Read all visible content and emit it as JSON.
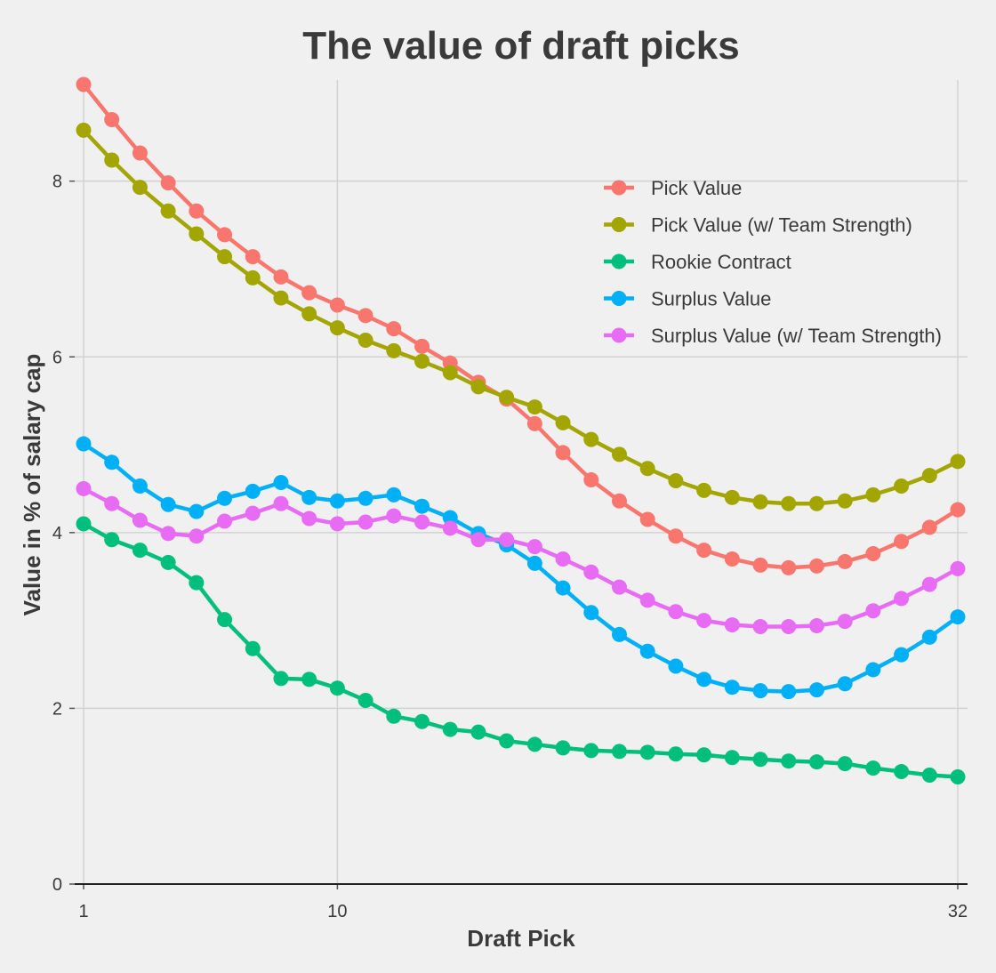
{
  "chart_data": {
    "type": "line",
    "title": "The value of draft picks",
    "xlabel": "Draft Pick",
    "ylabel": "Value in % of salary cap",
    "x": [
      1,
      2,
      3,
      4,
      5,
      6,
      7,
      8,
      9,
      10,
      11,
      12,
      13,
      14,
      15,
      16,
      17,
      18,
      19,
      20,
      21,
      22,
      23,
      24,
      25,
      26,
      27,
      28,
      29,
      30,
      31,
      32
    ],
    "xticks": [
      "1",
      "10",
      "32"
    ],
    "xtick_values": [
      1,
      10,
      32
    ],
    "yticks": [
      "0",
      "2",
      "4",
      "6",
      "8"
    ],
    "ytick_values": [
      0,
      2,
      4,
      6,
      8
    ],
    "xlim": [
      1,
      32
    ],
    "ylim": [
      0,
      9.1
    ],
    "grid": true,
    "legend_position": "top-right",
    "series": [
      {
        "name": "Pick Value",
        "color": "#f8766d",
        "values": [
          9.1,
          8.7,
          8.32,
          7.98,
          7.66,
          7.39,
          7.14,
          6.91,
          6.73,
          6.59,
          6.47,
          6.32,
          6.12,
          5.93,
          5.71,
          5.52,
          5.24,
          4.91,
          4.6,
          4.36,
          4.15,
          3.96,
          3.8,
          3.7,
          3.63,
          3.6,
          3.62,
          3.67,
          3.76,
          3.9,
          4.06,
          4.26
        ]
      },
      {
        "name": "Pick Value (w/ Team Strength)",
        "color": "#a3a500",
        "values": [
          8.58,
          8.24,
          7.93,
          7.66,
          7.4,
          7.14,
          6.9,
          6.67,
          6.49,
          6.33,
          6.19,
          6.07,
          5.95,
          5.82,
          5.66,
          5.54,
          5.43,
          5.25,
          5.06,
          4.89,
          4.73,
          4.59,
          4.48,
          4.4,
          4.35,
          4.33,
          4.33,
          4.36,
          4.43,
          4.53,
          4.65,
          4.81
        ]
      },
      {
        "name": "Rookie Contract",
        "color": "#00bf7d",
        "values": [
          4.1,
          3.92,
          3.8,
          3.66,
          3.43,
          3.01,
          2.68,
          2.34,
          2.33,
          2.23,
          2.09,
          1.91,
          1.85,
          1.76,
          1.73,
          1.63,
          1.59,
          1.55,
          1.52,
          1.51,
          1.5,
          1.48,
          1.47,
          1.44,
          1.42,
          1.4,
          1.39,
          1.37,
          1.32,
          1.28,
          1.24,
          1.22
        ]
      },
      {
        "name": "Surplus Value",
        "color": "#00b0f6",
        "values": [
          5.01,
          4.8,
          4.53,
          4.32,
          4.24,
          4.39,
          4.47,
          4.57,
          4.4,
          4.36,
          4.39,
          4.43,
          4.3,
          4.17,
          3.99,
          3.86,
          3.65,
          3.37,
          3.09,
          2.84,
          2.65,
          2.48,
          2.33,
          2.24,
          2.2,
          2.19,
          2.21,
          2.28,
          2.44,
          2.61,
          2.81,
          3.04
        ]
      },
      {
        "name": "Surplus Value (w/ Team Strength)",
        "color": "#e76bf3",
        "values": [
          4.5,
          4.33,
          4.14,
          3.99,
          3.96,
          4.13,
          4.22,
          4.33,
          4.16,
          4.1,
          4.12,
          4.19,
          4.12,
          4.05,
          3.92,
          3.92,
          3.84,
          3.7,
          3.55,
          3.38,
          3.23,
          3.1,
          3.0,
          2.95,
          2.93,
          2.93,
          2.94,
          2.99,
          3.11,
          3.25,
          3.41,
          3.59
        ]
      }
    ]
  }
}
